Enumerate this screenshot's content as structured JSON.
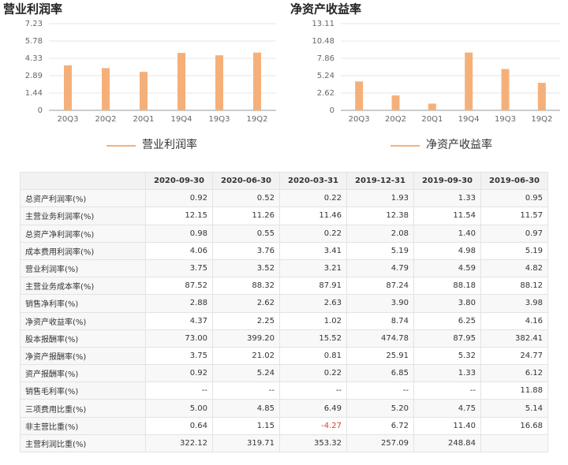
{
  "chart_data": [
    {
      "type": "bar",
      "title": "营业利润率",
      "categories": [
        "20Q3",
        "20Q2",
        "20Q1",
        "19Q4",
        "19Q3",
        "19Q2"
      ],
      "series": [
        {
          "name": "营业利润率",
          "color": "#f5b07a",
          "values": [
            3.75,
            3.52,
            3.21,
            4.79,
            4.59,
            4.82
          ]
        }
      ],
      "ylim": [
        0,
        7.23
      ],
      "yticks": [
        0,
        1.44,
        2.89,
        4.33,
        5.78,
        7.23
      ],
      "grid": true
    },
    {
      "type": "bar",
      "title": "净资产收益率",
      "categories": [
        "20Q3",
        "20Q2",
        "20Q1",
        "19Q4",
        "19Q3",
        "19Q2"
      ],
      "series": [
        {
          "name": "净资产收益率",
          "color": "#f5b07a",
          "values": [
            4.37,
            2.25,
            1.02,
            8.74,
            6.25,
            4.16
          ]
        }
      ],
      "ylim": [
        0,
        13.11
      ],
      "yticks": [
        0,
        2.62,
        5.24,
        7.86,
        10.48,
        13.11
      ],
      "grid": true
    }
  ],
  "table": {
    "columns": [
      "2020-09-30",
      "2020-06-30",
      "2020-03-31",
      "2019-12-31",
      "2019-09-30",
      "2019-06-30"
    ],
    "rows": [
      {
        "label": "总资产利润率(%)",
        "values": [
          "0.92",
          "0.52",
          "0.22",
          "1.93",
          "1.33",
          "0.95"
        ]
      },
      {
        "label": "主营业务利润率(%)",
        "values": [
          "12.15",
          "11.26",
          "11.46",
          "12.38",
          "11.54",
          "11.57"
        ]
      },
      {
        "label": "总资产净利润率(%)",
        "values": [
          "0.98",
          "0.55",
          "0.22",
          "2.08",
          "1.40",
          "0.97"
        ]
      },
      {
        "label": "成本费用利润率(%)",
        "values": [
          "4.06",
          "3.76",
          "3.41",
          "5.19",
          "4.98",
          "5.19"
        ]
      },
      {
        "label": "营业利润率(%)",
        "values": [
          "3.75",
          "3.52",
          "3.21",
          "4.79",
          "4.59",
          "4.82"
        ]
      },
      {
        "label": "主营业务成本率(%)",
        "values": [
          "87.52",
          "88.32",
          "87.91",
          "87.24",
          "88.18",
          "88.12"
        ]
      },
      {
        "label": "销售净利率(%)",
        "values": [
          "2.88",
          "2.62",
          "2.63",
          "3.90",
          "3.80",
          "3.98"
        ]
      },
      {
        "label": "净资产收益率(%)",
        "values": [
          "4.37",
          "2.25",
          "1.02",
          "8.74",
          "6.25",
          "4.16"
        ]
      },
      {
        "label": "股本报酬率(%)",
        "values": [
          "73.00",
          "399.20",
          "15.52",
          "474.78",
          "87.95",
          "382.41"
        ]
      },
      {
        "label": "净资产报酬率(%)",
        "values": [
          "3.75",
          "21.02",
          "0.81",
          "25.91",
          "5.32",
          "24.77"
        ]
      },
      {
        "label": "资产报酬率(%)",
        "values": [
          "0.92",
          "5.24",
          "0.22",
          "6.85",
          "1.33",
          "6.12"
        ]
      },
      {
        "label": "销售毛利率(%)",
        "values": [
          "--",
          "--",
          "--",
          "--",
          "--",
          "11.88"
        ]
      },
      {
        "label": "三项费用比重(%)",
        "values": [
          "5.00",
          "4.85",
          "6.49",
          "5.20",
          "4.75",
          "5.14"
        ]
      },
      {
        "label": "非主营比重(%)",
        "values": [
          "0.64",
          "1.15",
          "-4.27",
          "6.72",
          "11.40",
          "16.68"
        ]
      },
      {
        "label": "主营利润比重(%)",
        "values": [
          "322.12",
          "319.71",
          "353.32",
          "257.09",
          "248.84",
          null
        ]
      }
    ]
  }
}
